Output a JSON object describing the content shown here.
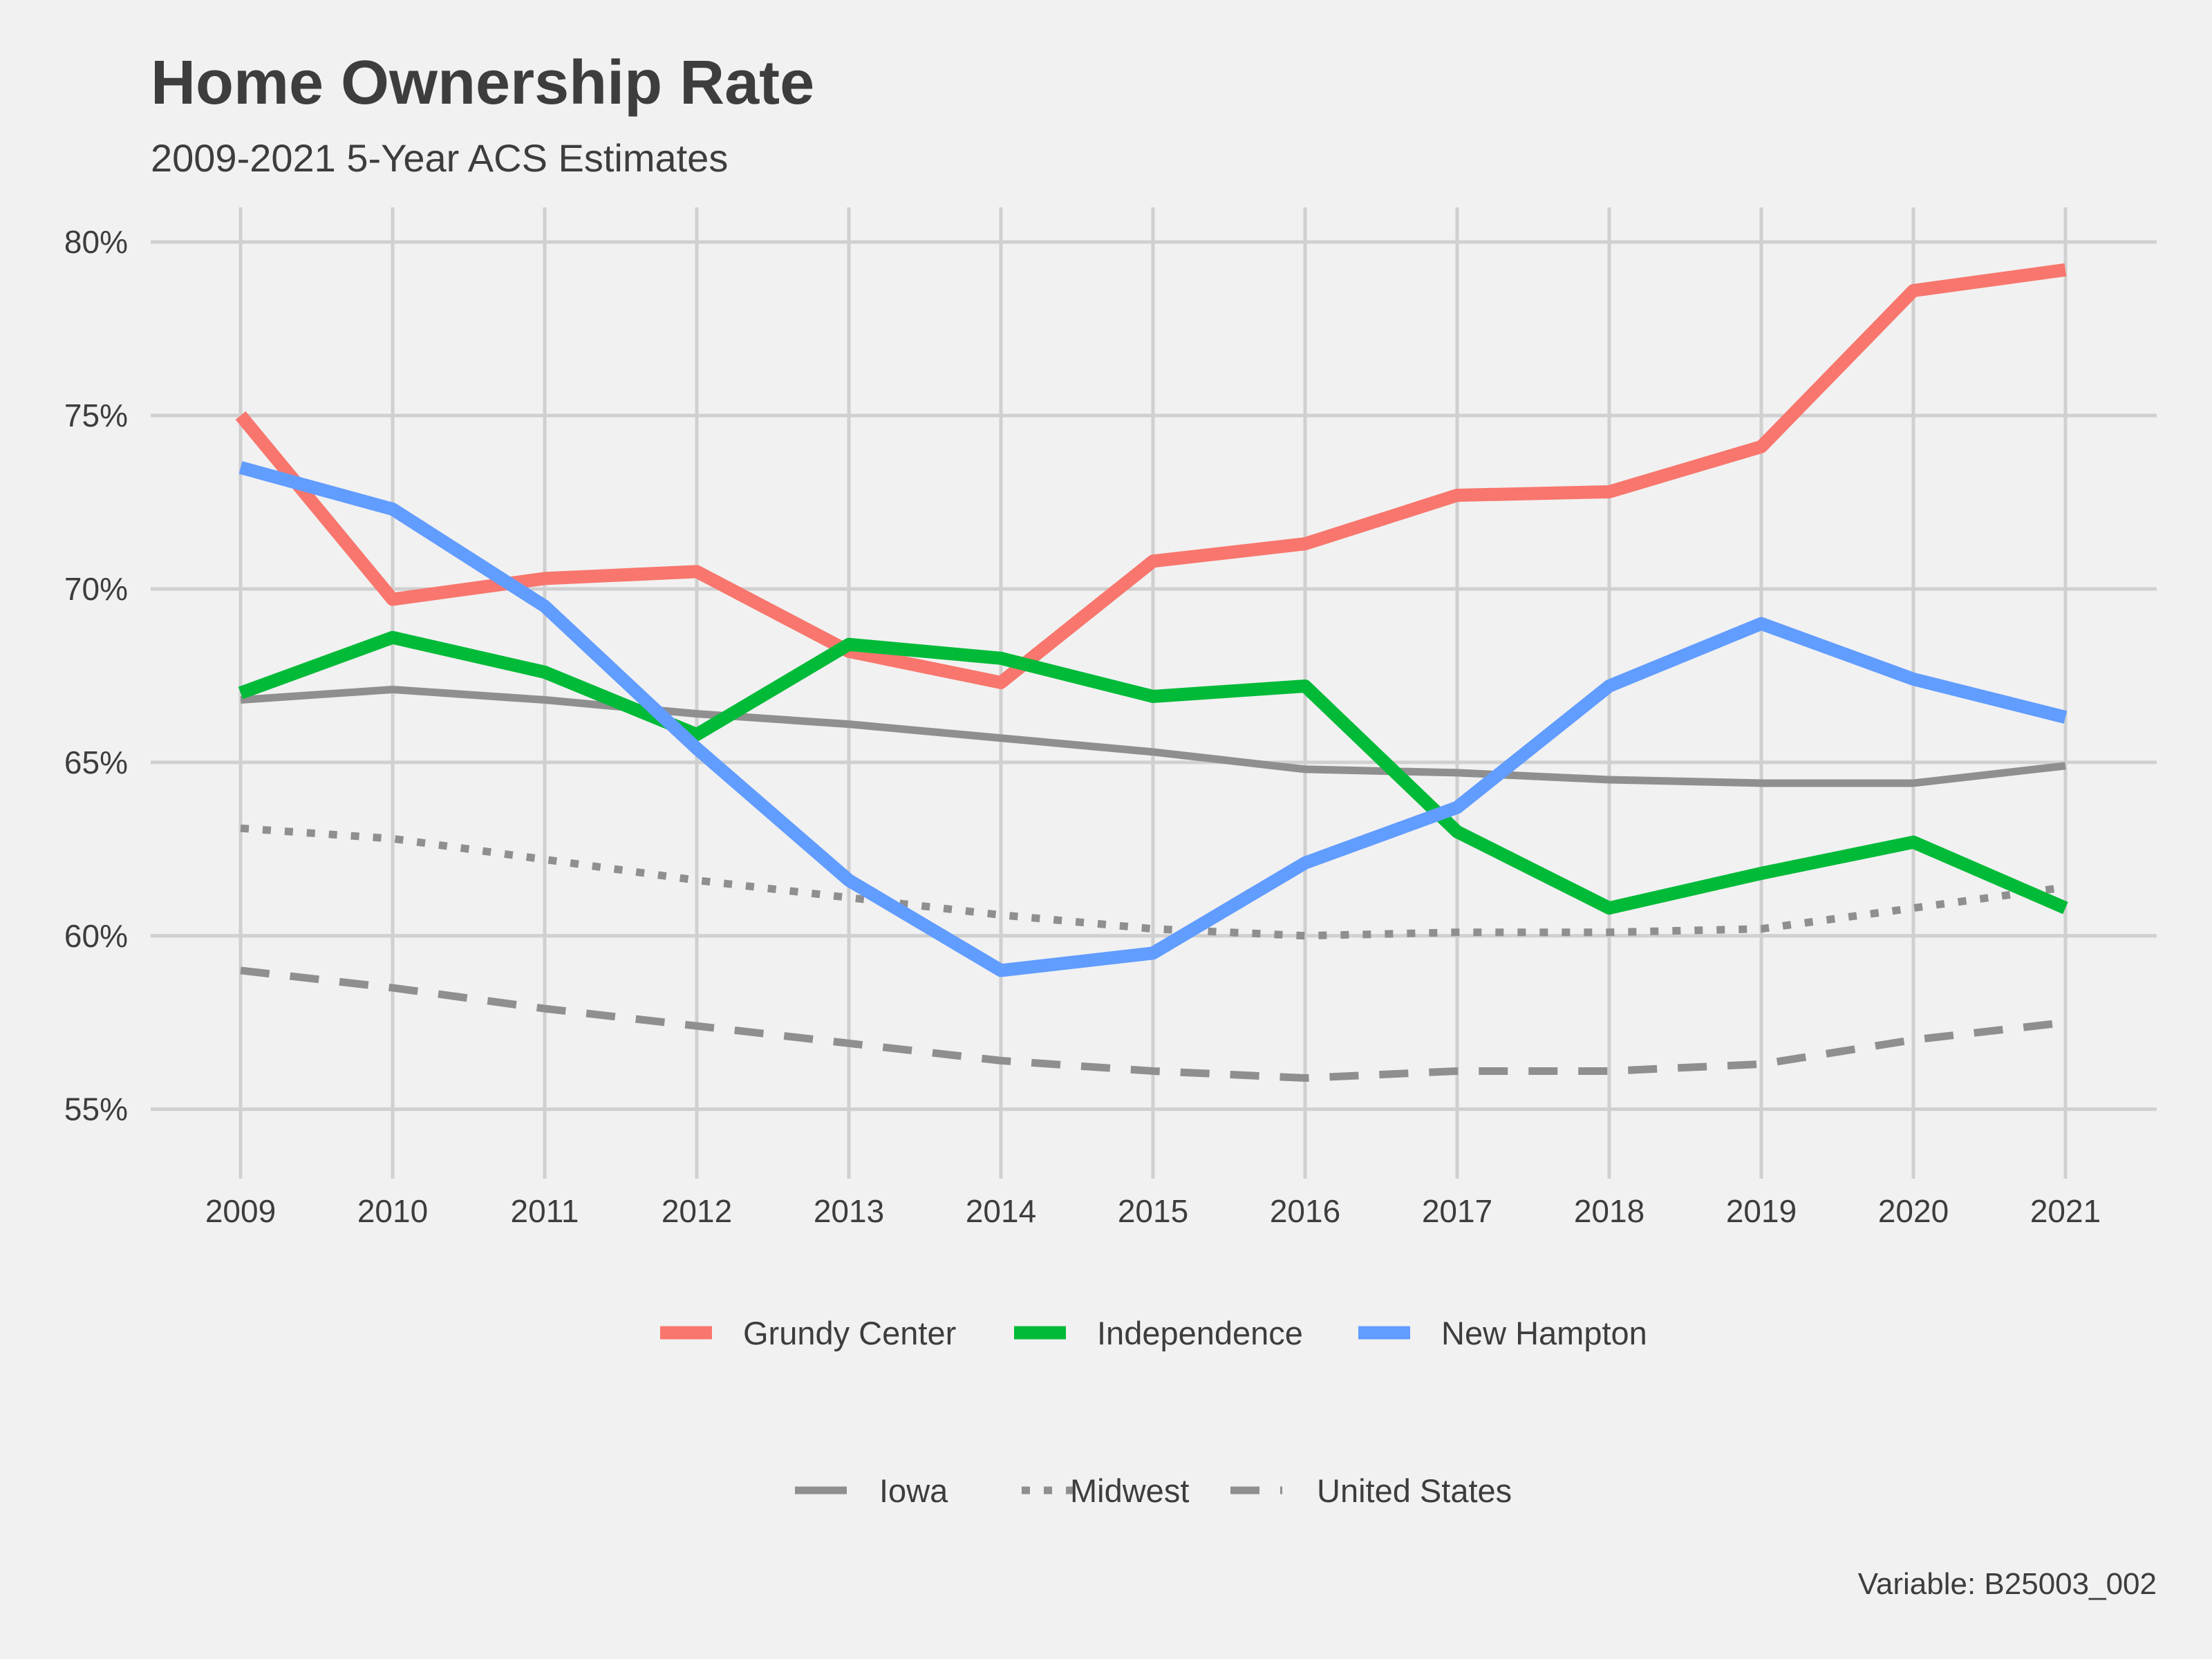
{
  "chart_data": {
    "type": "line",
    "title": "Home Ownership Rate",
    "subtitle": "2009-2021 5-Year ACS Estimates",
    "caption": "Variable: B25003_002",
    "x": [
      2009,
      2010,
      2011,
      2012,
      2013,
      2014,
      2015,
      2016,
      2017,
      2018,
      2019,
      2020,
      2021
    ],
    "x_tick_labels": [
      "2009",
      "2010",
      "2011",
      "2012",
      "2013",
      "2014",
      "2015",
      "2016",
      "2017",
      "2018",
      "2019",
      "2020",
      "2021"
    ],
    "ylim": [
      53,
      81
    ],
    "y_ticks": [
      55,
      60,
      65,
      70,
      75,
      80
    ],
    "y_tick_labels": [
      "55%",
      "60%",
      "65%",
      "70%",
      "75%",
      "80%"
    ],
    "grid": true,
    "legend_position": "bottom",
    "series": [
      {
        "name": "Grundy Center",
        "color": "#f8766d",
        "style": "solid",
        "values": [
          75.0,
          69.7,
          70.3,
          70.5,
          68.2,
          67.3,
          70.8,
          71.3,
          72.7,
          72.8,
          74.1,
          78.6,
          79.2
        ]
      },
      {
        "name": "Independence",
        "color": "#00ba38",
        "style": "solid",
        "values": [
          67.0,
          68.6,
          67.6,
          65.8,
          68.4,
          68.0,
          66.9,
          67.2,
          63.0,
          60.8,
          61.8,
          62.7,
          60.8
        ]
      },
      {
        "name": "New Hampton",
        "color": "#619cff",
        "style": "solid",
        "values": [
          73.5,
          72.3,
          69.5,
          65.4,
          61.6,
          59.0,
          59.5,
          62.1,
          63.7,
          67.2,
          69.0,
          67.4,
          66.3
        ]
      }
    ],
    "reference_series": [
      {
        "name": "Iowa",
        "color": "#8f8f8f",
        "style": "solid",
        "values": [
          66.8,
          67.1,
          66.8,
          66.4,
          66.1,
          65.7,
          65.3,
          64.8,
          64.7,
          64.5,
          64.4,
          64.4,
          64.9
        ]
      },
      {
        "name": "Midwest",
        "color": "#8f8f8f",
        "style": "dotted",
        "values": [
          63.1,
          62.8,
          62.2,
          61.6,
          61.1,
          60.6,
          60.2,
          60.0,
          60.1,
          60.1,
          60.2,
          60.8,
          61.4
        ]
      },
      {
        "name": "United States",
        "color": "#8f8f8f",
        "style": "dashed",
        "values": [
          59.0,
          58.5,
          57.9,
          57.4,
          56.9,
          56.4,
          56.1,
          55.9,
          56.1,
          56.1,
          56.3,
          57.0,
          57.5
        ]
      }
    ]
  }
}
